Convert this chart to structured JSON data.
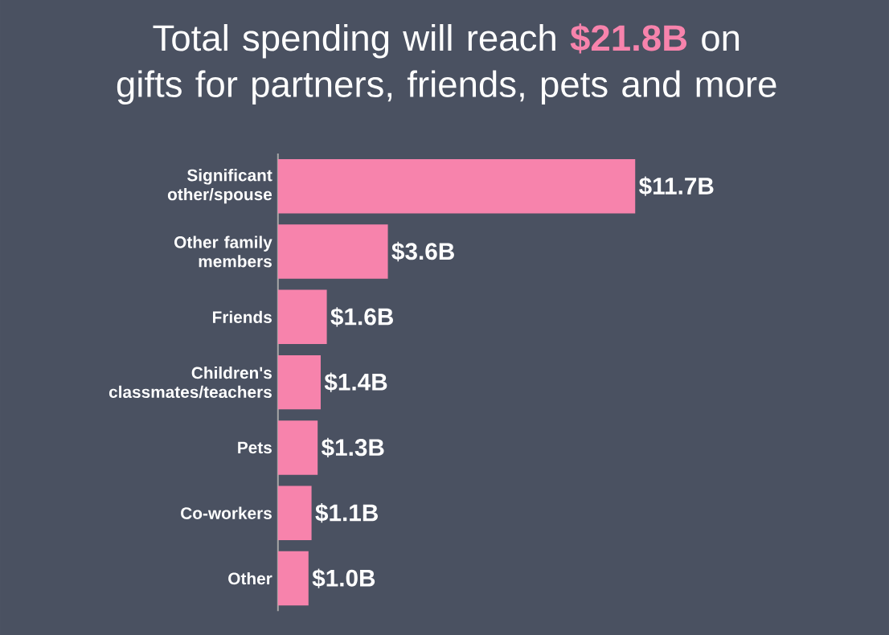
{
  "chart_data": {
    "type": "bar",
    "orientation": "horizontal",
    "title": "Total spending will reach **$21.8B** on gifts for partners, friends, pets and more",
    "categories": [
      "Significant other/spouse",
      "Other family members",
      "Friends",
      "Children's classmates/teachers",
      "Pets",
      "Co-workers",
      "Other"
    ],
    "values": [
      11.7,
      3.6,
      1.6,
      1.4,
      1.3,
      1.1,
      1.0
    ],
    "value_labels": [
      "$11.7B",
      "$3.6B",
      "$1.6B",
      "$1.4B",
      "$1.3B",
      "$1.1B",
      "$1.0B"
    ],
    "color": "#f783ac"
  }
}
